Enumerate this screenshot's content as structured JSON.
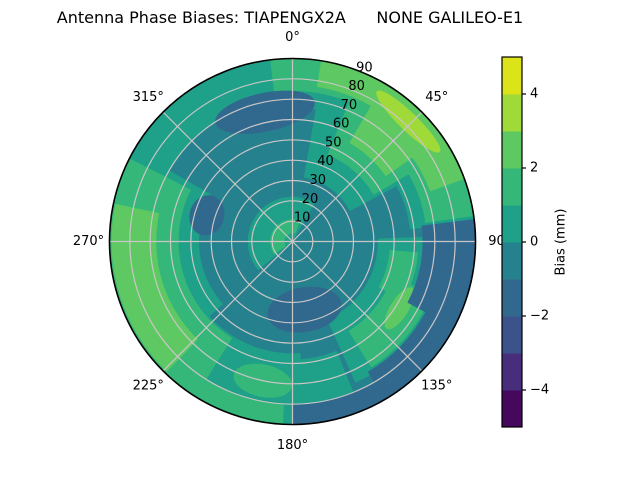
{
  "chart_data": {
    "type": "polar_contour",
    "title": "Antenna Phase Biases: TIAPENGX2A      NONE GALILEO-E1",
    "angular_tick_labels": [
      {
        "angle_deg": 0,
        "label": "0°"
      },
      {
        "angle_deg": 45,
        "label": "45°"
      },
      {
        "angle_deg": 90,
        "label": "90"
      },
      {
        "angle_deg": 135,
        "label": "135°"
      },
      {
        "angle_deg": 180,
        "label": "180°"
      },
      {
        "angle_deg": 225,
        "label": "225°"
      },
      {
        "angle_deg": 270,
        "label": "270°"
      },
      {
        "angle_deg": 315,
        "label": "315°"
      }
    ],
    "radial_tick_labels": [
      {
        "value": 10,
        "label": "10"
      },
      {
        "value": 20,
        "label": "20"
      },
      {
        "value": 30,
        "label": "30"
      },
      {
        "value": 40,
        "label": "40"
      },
      {
        "value": 50,
        "label": "50"
      },
      {
        "value": 60,
        "label": "60"
      },
      {
        "value": 70,
        "label": "70"
      },
      {
        "value": 80,
        "label": "80"
      },
      {
        "value": 90,
        "label": "90"
      }
    ],
    "radial_axis_range": [
      0,
      90
    ],
    "grid_color": "#c9c6c6",
    "colorbar": {
      "label": "Bias (mm)",
      "range": [
        -5,
        5
      ],
      "tick_labels": [
        {
          "value": 4,
          "label": "4"
        },
        {
          "value": 2,
          "label": "2"
        },
        {
          "value": 0,
          "label": "0"
        },
        {
          "value": -2,
          "label": "−2"
        },
        {
          "value": -4,
          "label": "−4"
        }
      ],
      "band_colors_low_to_high": [
        "#46085c",
        "#472d7b",
        "#3b528b",
        "#31688e",
        "#26818e",
        "#1fa088",
        "#35b779",
        "#5ec962",
        "#a0da39",
        "#dce319"
      ]
    },
    "band_palette": {
      "-2": "#31688e",
      "-1": "#26818e",
      "0": "#1fa088",
      "1": "#35b779",
      "2": "#5ec962",
      "3": "#a0da39"
    },
    "base_band": -1,
    "regions": [
      {
        "t": "s",
        "a0": 230,
        "a1": 390,
        "v0": 0,
        "v1": 22,
        "b": 0
      },
      {
        "t": "s",
        "a0": 10,
        "a1": 62,
        "v0": 32,
        "v1": 95,
        "b": 0
      },
      {
        "t": "s",
        "a0": 58,
        "a1": 84,
        "v0": 58,
        "v1": 95,
        "b": 0
      },
      {
        "t": "s",
        "a0": 228,
        "a1": 300,
        "v0": 46,
        "v1": 93,
        "b": 0
      },
      {
        "t": "s",
        "a0": 176,
        "a1": 232,
        "v0": 55,
        "v1": 93,
        "b": 0
      },
      {
        "t": "s",
        "a0": 298,
        "a1": 356,
        "v0": 70,
        "v1": 92,
        "b": 0
      },
      {
        "t": "s",
        "a0": 348,
        "a1": 372,
        "v0": 66,
        "v1": 92,
        "b": 0
      },
      {
        "t": "s",
        "a0": 88,
        "a1": 156,
        "v0": 42,
        "v1": 76,
        "b": 0
      },
      {
        "t": "s",
        "a0": 158,
        "a1": 178,
        "v0": 58,
        "v1": 88,
        "b": 0
      },
      {
        "t": "s",
        "a0": 353,
        "a1": 385,
        "v0": 74,
        "v1": 91,
        "b": 1
      },
      {
        "t": "s",
        "a0": 22,
        "a1": 60,
        "v0": 46,
        "v1": 94,
        "b": 1
      },
      {
        "t": "s",
        "a0": 58,
        "a1": 82,
        "v0": 66,
        "v1": 93,
        "b": 1
      },
      {
        "t": "s",
        "a0": 212,
        "a1": 297,
        "v0": 56,
        "v1": 92,
        "b": 1
      },
      {
        "t": "s",
        "a0": 183,
        "a1": 212,
        "v0": 80,
        "v1": 92,
        "b": 1
      },
      {
        "t": "s",
        "a0": 95,
        "a1": 118,
        "v0": 48,
        "v1": 62,
        "b": 1
      },
      {
        "t": "s",
        "a0": 110,
        "a1": 148,
        "v0": 52,
        "v1": 73,
        "b": 1
      },
      {
        "t": "b",
        "a": 192,
        "v": 70,
        "da": 24,
        "dv": 16,
        "b": 1
      },
      {
        "t": "s",
        "a0": 235,
        "a1": 380,
        "v0": 4,
        "v1": 11,
        "b": 1
      },
      {
        "t": "s",
        "a0": 30,
        "a1": 55,
        "v0": 56,
        "v1": 93,
        "b": 2
      },
      {
        "t": "s",
        "a0": 53,
        "a1": 70,
        "v0": 72,
        "v1": 90,
        "b": 2
      },
      {
        "t": "s",
        "a0": 9,
        "a1": 31,
        "v0": 77,
        "v1": 90,
        "b": 2
      },
      {
        "t": "s",
        "a0": 224,
        "a1": 282,
        "v0": 67,
        "v1": 89,
        "b": 2
      },
      {
        "t": "b",
        "a": 122,
        "v": 62,
        "da": 22,
        "dv": 9,
        "b": 2
      },
      {
        "t": "b",
        "a": 44,
        "v": 82,
        "da": 30,
        "dv": 9,
        "b": 3
      },
      {
        "t": "b",
        "a": 348,
        "v": 65,
        "da": 44,
        "dv": 19,
        "b": -2
      },
      {
        "t": "s",
        "a0": 83,
        "a1": 118,
        "v0": 64,
        "v1": 93,
        "b": -2
      },
      {
        "t": "s",
        "a0": 112,
        "a1": 150,
        "v0": 74,
        "v1": 93,
        "b": -2
      },
      {
        "t": "b",
        "a": 170,
        "v": 34,
        "da": 62,
        "dv": 22,
        "b": -2
      },
      {
        "t": "b",
        "a": 287,
        "v": 44,
        "da": 26,
        "dv": 17,
        "b": -2
      },
      {
        "t": "s",
        "a0": 148,
        "a1": 180,
        "v0": 80,
        "v1": 93,
        "b": -2
      }
    ]
  }
}
